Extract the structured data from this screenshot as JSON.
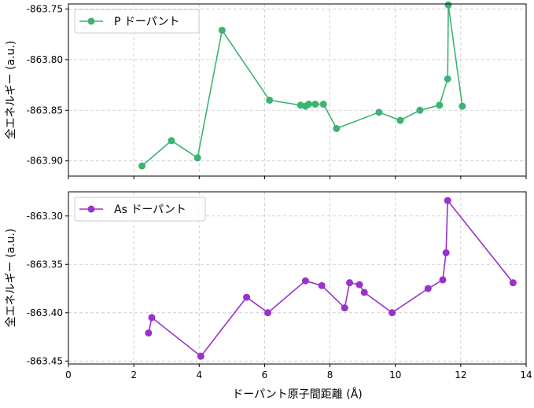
{
  "chart_data": {
    "type": "line",
    "xlabel": "ドーパント原子間距離 (Å)",
    "xlim": [
      0,
      14
    ],
    "xticks": [
      0,
      2,
      4,
      6,
      8,
      10,
      12,
      14
    ],
    "grid": true,
    "panels": [
      {
        "ylabel": "全エネルギー (a.u.)",
        "ylim": [
          -863.915,
          -863.745
        ],
        "yticks": [
          -863.9,
          -863.85,
          -863.8,
          -863.75
        ],
        "ytick_labels": [
          "-863.90",
          "-863.85",
          "-863.80",
          "-863.75"
        ],
        "show_xtick_labels": false,
        "legend_position": "top-left",
        "series": [
          {
            "name": "P ドーパント",
            "color": "#3cb371",
            "x": [
              2.25,
              3.15,
              3.95,
              4.7,
              6.15,
              7.1,
              7.25,
              7.35,
              7.55,
              7.8,
              8.2,
              9.5,
              10.15,
              10.75,
              11.35,
              11.6,
              11.62,
              12.05
            ],
            "y": [
              -863.905,
              -863.88,
              -863.897,
              -863.771,
              -863.84,
              -863.845,
              -863.846,
              -863.844,
              -863.844,
              -863.844,
              -863.868,
              -863.852,
              -863.86,
              -863.85,
              -863.845,
              -863.819,
              -863.746,
              -863.846
            ]
          }
        ]
      },
      {
        "ylabel": "全エネルギー (a.u.)",
        "ylim": [
          -863.453,
          -863.275
        ],
        "yticks": [
          -863.45,
          -863.4,
          -863.35,
          -863.3
        ],
        "ytick_labels": [
          "-863.45",
          "-863.40",
          "-863.35",
          "-863.30"
        ],
        "show_xtick_labels": true,
        "legend_position": "top-left",
        "series": [
          {
            "name": "As ドーパント",
            "color": "#9932cc",
            "x": [
              2.45,
              2.55,
              4.05,
              5.45,
              6.1,
              7.25,
              7.75,
              8.45,
              8.6,
              8.9,
              9.05,
              9.9,
              11.0,
              11.45,
              11.55,
              11.6,
              13.6
            ],
            "y": [
              -863.421,
              -863.405,
              -863.445,
              -863.384,
              -863.4,
              -863.367,
              -863.372,
              -863.395,
              -863.369,
              -863.371,
              -863.379,
              -863.4,
              -863.375,
              -863.366,
              -863.338,
              -863.284,
              -863.369
            ]
          }
        ]
      }
    ]
  }
}
